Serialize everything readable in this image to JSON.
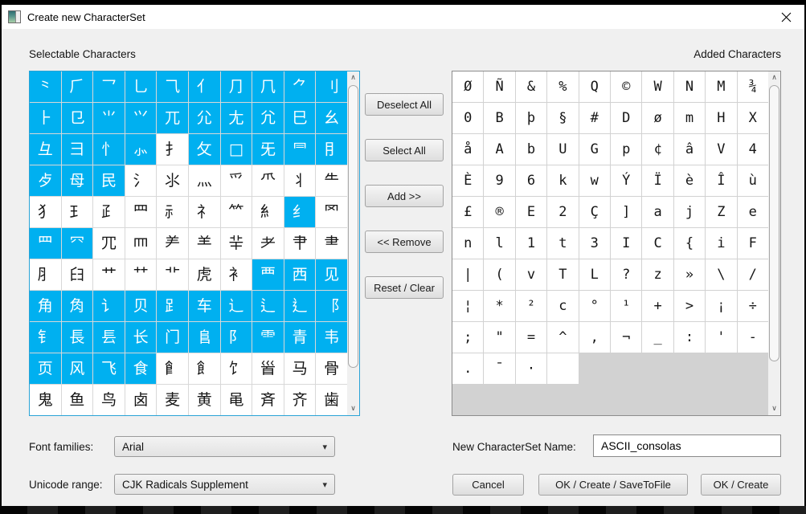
{
  "window": {
    "title": "Create new CharacterSet"
  },
  "headings": {
    "selectable": "Selectable Characters",
    "added": "Added Characters"
  },
  "action_buttons": {
    "deselect_all": "Deselect All",
    "select_all": "Select All",
    "add": "Add >>",
    "remove": "<< Remove",
    "reset_clear": "Reset / Clear"
  },
  "selectable_grid": {
    "selected_color": "#00b0f0",
    "rows": [
      "⺀⺁⺂⺃⺄⺅⺆⺇⺈⺉",
      "⺊⺋⺌⺍⺎⺏⺐⺑⺒⺓",
      "⺔⺕⺖⺗⺘⺙□⺛⺜⺝",
      "⺞⺟⺠⺡⺢⺣⺤⺥⺦⺧",
      "⺨⺩⺪⺫⺬⺭⺮⺯⺰⺱",
      "⺲⺳⺴⺵⺶⺷⺸⺹⺺⺻",
      "⺼⺽⺾⺿⻀⻁⻂⻃⻄⻅",
      "⻆⻇⻈⻉⻊⻋⻌⻍⻎⻏",
      "⻐⻑⻒⻓⻔⻕⻖⻗⻘⻙",
      "⻚⻛⻜⻝⻞⻟⻠⻡⻢⻣",
      "⻤⻥⻦⻧⻨⻩⻪⻫⻬⻭"
    ],
    "selected_mask": [
      "1111111111",
      "1111111111",
      "1111011111",
      "1110000000",
      "0000000010",
      "1100000000",
      "0000000111",
      "1111111111",
      "1111111111",
      "1111000000",
      "0000000000"
    ]
  },
  "added_grid": {
    "rows": [
      "ØÑ&%Q©WNM¾",
      "0Bþ§#DømHX",
      "åAbUGp¢âV4",
      "È96kwÝÏèÎù",
      "£®E2Ç]ajZe",
      "nl1t3IC{iF",
      "|(vTL?z»\\/",
      "¦*²c°¹+>¡÷",
      ";\"=^,¬_:'-",
      ".¯· "
    ]
  },
  "font_row": {
    "label": "Font families:",
    "value": "Arial"
  },
  "range_row": {
    "label": "Unicode range:",
    "value": "CJK Radicals Supplement"
  },
  "name_row": {
    "label": "New CharacterSet Name:",
    "value": "ASCII_consolas"
  },
  "bottom_buttons": {
    "cancel": "Cancel",
    "ok_create_save": "OK / Create / SaveToFile",
    "ok_create": "OK / Create"
  },
  "icons": {
    "scroll_up": "∧",
    "scroll_down": "∨",
    "combo_arrow": "▾"
  }
}
